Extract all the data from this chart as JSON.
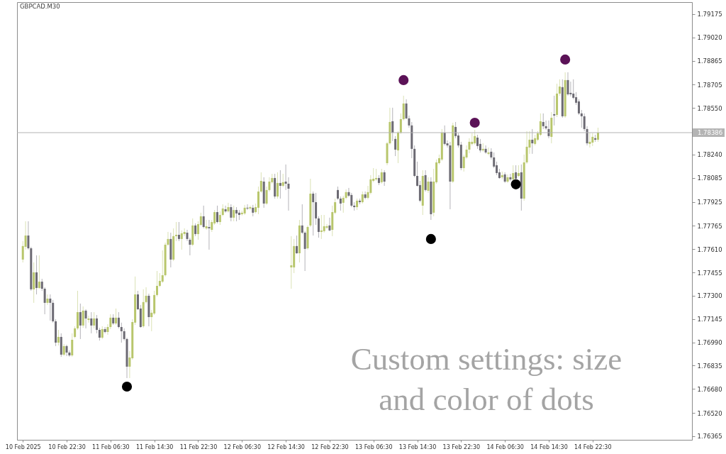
{
  "chart_data": {
    "type": "candlestick",
    "title": "GBPCAD.M30",
    "x": [
      "2025-02-10T14:30",
      "2025-02-10T15:00",
      "2025-02-10T15:30",
      "2025-02-10T16:00",
      "2025-02-10T16:30",
      "2025-02-10T17:00",
      "2025-02-10T17:30",
      "2025-02-10T18:00",
      "2025-02-10T18:30",
      "2025-02-10T19:00",
      "2025-02-10T19:30",
      "2025-02-10T20:00",
      "2025-02-10T20:30",
      "2025-02-10T21:00",
      "2025-02-10T21:30",
      "2025-02-10T22:00",
      "2025-02-10T22:30",
      "2025-02-10T23:00",
      "2025-02-10T23:30",
      "2025-02-11T00:00",
      "2025-02-11T00:30",
      "2025-02-11T01:00",
      "2025-02-11T01:30",
      "2025-02-11T02:00",
      "2025-02-11T02:30",
      "2025-02-11T03:00",
      "2025-02-11T03:30",
      "2025-02-11T04:00",
      "2025-02-11T04:30",
      "2025-02-11T05:00",
      "2025-02-11T05:30",
      "2025-02-11T06:00",
      "2025-02-11T06:30",
      "2025-02-11T07:00",
      "2025-02-11T07:30",
      "2025-02-11T08:00",
      "2025-02-11T08:30",
      "2025-02-11T09:00",
      "2025-02-11T09:30",
      "2025-02-11T10:00",
      "2025-02-11T10:30",
      "2025-02-11T11:00",
      "2025-02-11T11:30",
      "2025-02-11T12:00",
      "2025-02-11T12:30",
      "2025-02-11T13:00",
      "2025-02-11T13:30",
      "2025-02-11T14:00",
      "2025-02-11T14:30",
      "2025-02-11T15:00",
      "2025-02-11T15:30",
      "2025-02-11T16:00",
      "2025-02-11T16:30",
      "2025-02-11T17:00",
      "2025-02-11T17:30",
      "2025-02-11T18:00",
      "2025-02-11T18:30",
      "2025-02-11T19:00",
      "2025-02-11T19:30",
      "2025-02-11T20:00",
      "2025-02-11T20:30",
      "2025-02-11T21:00",
      "2025-02-11T21:30",
      "2025-02-11T22:00",
      "2025-02-11T22:30",
      "2025-02-11T23:00",
      "2025-02-11T23:30",
      "2025-02-12T00:00",
      "2025-02-12T00:30",
      "2025-02-12T01:00",
      "2025-02-12T01:30",
      "2025-02-12T02:00",
      "2025-02-12T02:30",
      "2025-02-12T03:00",
      "2025-02-12T03:30",
      "2025-02-12T04:00",
      "2025-02-12T04:30",
      "2025-02-12T05:00",
      "2025-02-12T05:30",
      "2025-02-12T06:00",
      "2025-02-12T06:30",
      "2025-02-12T07:00",
      "2025-02-12T07:30",
      "2025-02-12T08:00",
      "2025-02-12T08:30",
      "2025-02-12T09:00",
      "2025-02-12T09:30",
      "2025-02-12T10:00",
      "2025-02-12T10:30",
      "2025-02-12T11:00",
      "2025-02-12T11:30",
      "2025-02-12T12:00",
      "2025-02-12T12:30",
      "2025-02-12T13:00",
      "2025-02-12T13:30",
      "2025-02-12T14:00",
      "2025-02-12T14:30",
      "2025-02-12T15:00",
      "2025-02-12T15:30",
      "2025-02-12T16:00",
      "2025-02-12T16:30",
      "2025-02-12T17:00",
      "2025-02-12T17:30",
      "2025-02-12T18:00",
      "2025-02-12T18:30",
      "2025-02-12T19:00",
      "2025-02-12T19:30",
      "2025-02-12T20:00",
      "2025-02-12T20:30",
      "2025-02-12T21:00",
      "2025-02-12T21:30",
      "2025-02-12T22:00",
      "2025-02-12T22:30",
      "2025-02-12T23:00",
      "2025-02-12T23:30",
      "2025-02-13T00:00",
      "2025-02-13T00:30",
      "2025-02-13T01:00",
      "2025-02-13T01:30",
      "2025-02-13T02:00",
      "2025-02-13T02:30",
      "2025-02-13T03:00",
      "2025-02-13T03:30",
      "2025-02-13T04:00",
      "2025-02-13T04:30",
      "2025-02-13T05:00",
      "2025-02-13T05:30",
      "2025-02-13T06:00",
      "2025-02-13T06:30",
      "2025-02-13T07:00",
      "2025-02-13T07:30",
      "2025-02-13T08:00",
      "2025-02-13T08:30",
      "2025-02-13T09:00",
      "2025-02-13T09:30",
      "2025-02-13T10:00",
      "2025-02-13T10:30",
      "2025-02-13T11:00",
      "2025-02-13T11:30",
      "2025-02-13T12:00",
      "2025-02-13T12:30",
      "2025-02-13T13:00",
      "2025-02-13T13:30",
      "2025-02-13T14:00",
      "2025-02-13T14:30",
      "2025-02-13T15:00",
      "2025-02-13T15:30",
      "2025-02-13T16:00",
      "2025-02-13T16:30",
      "2025-02-13T17:00",
      "2025-02-13T17:30",
      "2025-02-13T18:00",
      "2025-02-13T18:30",
      "2025-02-13T19:00",
      "2025-02-13T19:30",
      "2025-02-13T20:00",
      "2025-02-13T20:30",
      "2025-02-13T21:00",
      "2025-02-13T21:30",
      "2025-02-13T22:00",
      "2025-02-13T22:30",
      "2025-02-13T23:00",
      "2025-02-13T23:30",
      "2025-02-14T00:00",
      "2025-02-14T00:30",
      "2025-02-14T01:00",
      "2025-02-14T01:30",
      "2025-02-14T02:00",
      "2025-02-14T02:30",
      "2025-02-14T03:00",
      "2025-02-14T03:30",
      "2025-02-14T04:00",
      "2025-02-14T04:30",
      "2025-02-14T05:00",
      "2025-02-14T05:30",
      "2025-02-14T06:00",
      "2025-02-14T06:30",
      "2025-02-14T07:00",
      "2025-02-14T07:30",
      "2025-02-14T08:00",
      "2025-02-14T08:30",
      "2025-02-14T09:00",
      "2025-02-14T09:30",
      "2025-02-14T10:00",
      "2025-02-14T10:30",
      "2025-02-14T11:00",
      "2025-02-14T11:30",
      "2025-02-14T12:00",
      "2025-02-14T12:30",
      "2025-02-14T13:00",
      "2025-02-14T13:30",
      "2025-02-14T14:00",
      "2025-02-14T14:30",
      "2025-02-14T15:00",
      "2025-02-14T15:30",
      "2025-02-14T16:00",
      "2025-02-14T16:30",
      "2025-02-14T17:00",
      "2025-02-14T17:30",
      "2025-02-14T18:00",
      "2025-02-14T18:30",
      "2025-02-14T19:00",
      "2025-02-14T19:30",
      "2025-02-14T20:00",
      "2025-02-14T20:30",
      "2025-02-14T21:00",
      "2025-02-14T21:30",
      "2025-02-14T22:00",
      "2025-02-14T22:30",
      "2025-02-14T23:00",
      "2025-02-14T23:30"
    ],
    "ohlc": [
      [
        1.77541,
        1.77664,
        1.77522,
        1.77631
      ],
      [
        1.77626,
        1.77796,
        1.77607,
        1.77701
      ],
      [
        1.77701,
        1.77796,
        1.77607,
        1.77616
      ],
      [
        1.77616,
        1.77626,
        1.77333,
        1.77343
      ],
      [
        1.77343,
        1.77522,
        1.77253,
        1.77456
      ],
      [
        1.77456,
        1.77569,
        1.77309,
        1.77352
      ],
      [
        1.77352,
        1.77569,
        1.77347,
        1.77394
      ],
      [
        1.77394,
        1.77413,
        1.77333,
        1.77347
      ],
      [
        1.77347,
        1.77357,
        1.77177,
        1.77253
      ],
      [
        1.77253,
        1.77309,
        1.77239,
        1.77281
      ],
      [
        1.77281,
        1.77309,
        1.77135,
        1.77253
      ],
      [
        1.77253,
        1.77272,
        1.77121,
        1.7713
      ],
      [
        1.7713,
        1.77144,
        1.76965,
        1.76988
      ],
      [
        1.76988,
        1.77073,
        1.76969,
        1.77026
      ],
      [
        1.77026,
        1.7705,
        1.76894,
        1.76908
      ],
      [
        1.76908,
        1.76979,
        1.76899,
        1.76965
      ],
      [
        1.76965,
        1.76974,
        1.76899,
        1.76922
      ],
      [
        1.76922,
        1.76936,
        1.76894,
        1.76903
      ],
      [
        1.76903,
        1.7705,
        1.76894,
        1.77007
      ],
      [
        1.77026,
        1.77097,
        1.77017,
        1.77083
      ],
      [
        1.77083,
        1.77333,
        1.77073,
        1.77191
      ],
      [
        1.77191,
        1.77248,
        1.77012,
        1.77102
      ],
      [
        1.77102,
        1.77229,
        1.77087,
        1.77201
      ],
      [
        1.77201,
        1.7721,
        1.77083,
        1.77149
      ],
      [
        1.77139,
        1.77168,
        1.77121,
        1.77149
      ],
      [
        1.77149,
        1.77191,
        1.7705,
        1.77102
      ],
      [
        1.77102,
        1.77191,
        1.77083,
        1.77149
      ],
      [
        1.77149,
        1.77172,
        1.7705,
        1.77073
      ],
      [
        1.77073,
        1.77087,
        1.77002,
        1.77021
      ],
      [
        1.77021,
        1.77097,
        1.77012,
        1.77078
      ],
      [
        1.77078,
        1.77092,
        1.7705,
        1.77059
      ],
      [
        1.77059,
        1.77111,
        1.7704,
        1.77092
      ],
      [
        1.77092,
        1.77177,
        1.77078,
        1.77154
      ],
      [
        1.77154,
        1.77177,
        1.77106,
        1.77116
      ],
      [
        1.77116,
        1.77215,
        1.77106,
        1.77154
      ],
      [
        1.77154,
        1.77191,
        1.77083,
        1.77092
      ],
      [
        1.77092,
        1.77121,
        1.76988,
        1.77064
      ],
      [
        1.77064,
        1.77083,
        1.77002,
        1.77012
      ],
      [
        1.77012,
        1.77021,
        1.76752,
        1.76828
      ],
      [
        1.76828,
        1.76932,
        1.76752,
        1.76889
      ],
      [
        1.76884,
        1.77144,
        1.76875,
        1.77125
      ],
      [
        1.77121,
        1.77428,
        1.77106,
        1.77309
      ],
      [
        1.77309,
        1.77333,
        1.77206,
        1.7721
      ],
      [
        1.77215,
        1.77239,
        1.77087,
        1.77092
      ],
      [
        1.77097,
        1.77343,
        1.77087,
        1.77258
      ],
      [
        1.77258,
        1.77357,
        1.77248,
        1.773
      ],
      [
        1.773,
        1.77314,
        1.77097,
        1.77158
      ],
      [
        1.77158,
        1.77206,
        1.77064,
        1.77187
      ],
      [
        1.77182,
        1.77333,
        1.77172,
        1.77305
      ],
      [
        1.77305,
        1.77465,
        1.77295,
        1.77366
      ],
      [
        1.77366,
        1.77451,
        1.77357,
        1.77399
      ],
      [
        1.77394,
        1.77602,
        1.77385,
        1.77437
      ],
      [
        1.77437,
        1.77654,
        1.77428,
        1.7764
      ],
      [
        1.7764,
        1.77725,
        1.77631,
        1.77678
      ],
      [
        1.77678,
        1.7772,
        1.77489,
        1.77541
      ],
      [
        1.77541,
        1.77749,
        1.77531,
        1.77697
      ],
      [
        1.77697,
        1.77791,
        1.77664,
        1.77706
      ],
      [
        1.77706,
        1.77791,
        1.77664,
        1.77678
      ],
      [
        1.77678,
        1.77735,
        1.77607,
        1.77716
      ],
      [
        1.77711,
        1.77749,
        1.77697,
        1.77725
      ],
      [
        1.7772,
        1.77739,
        1.77664,
        1.77678
      ],
      [
        1.77673,
        1.77687,
        1.77569,
        1.7764
      ],
      [
        1.7764,
        1.77815,
        1.77631,
        1.77768
      ],
      [
        1.77768,
        1.77782,
        1.77697,
        1.77711
      ],
      [
        1.77711,
        1.77796,
        1.77673,
        1.77777
      ],
      [
        1.77772,
        1.77853,
        1.77763,
        1.77829
      ],
      [
        1.77829,
        1.779,
        1.77749,
        1.77758
      ],
      [
        1.77749,
        1.77805,
        1.77739,
        1.77763
      ],
      [
        1.77758,
        1.77805,
        1.77607,
        1.77749
      ],
      [
        1.77739,
        1.77805,
        1.77725,
        1.77791
      ],
      [
        1.77782,
        1.77871,
        1.77772,
        1.77857
      ],
      [
        1.77857,
        1.779,
        1.77782,
        1.77791
      ],
      [
        1.77791,
        1.77862,
        1.77772,
        1.77838
      ],
      [
        1.77838,
        1.77909,
        1.77829,
        1.77881
      ],
      [
        1.77876,
        1.779,
        1.77853,
        1.77862
      ],
      [
        1.77862,
        1.77919,
        1.77853,
        1.7789
      ],
      [
        1.7789,
        1.77909,
        1.77796,
        1.7782
      ],
      [
        1.7782,
        1.779,
        1.77796,
        1.77871
      ],
      [
        1.77871,
        1.7789,
        1.77796,
        1.77848
      ],
      [
        1.77853,
        1.77871,
        1.77805,
        1.77838
      ],
      [
        1.77843,
        1.77867,
        1.77834,
        1.77853
      ],
      [
        1.77848,
        1.77905,
        1.77838,
        1.77886
      ],
      [
        1.77886,
        1.77909,
        1.77871,
        1.77881
      ],
      [
        1.77881,
        1.779,
        1.77871,
        1.7789
      ],
      [
        1.77886,
        1.77905,
        1.77829,
        1.77853
      ],
      [
        1.77857,
        1.77914,
        1.77848,
        1.7789
      ],
      [
        1.77886,
        1.78027,
        1.77843,
        1.77994
      ],
      [
        1.77994,
        1.78122,
        1.77985,
        1.78065
      ],
      [
        1.7806,
        1.78089,
        1.77886,
        1.77914
      ],
      [
        1.77914,
        1.78027,
        1.77905,
        1.78004
      ],
      [
        1.78004,
        1.78089,
        1.77994,
        1.7806
      ],
      [
        1.78056,
        1.78112,
        1.78046,
        1.78084
      ],
      [
        1.78084,
        1.78112,
        1.77947,
        1.77961
      ],
      [
        1.77961,
        1.78122,
        1.77947,
        1.78051
      ],
      [
        1.78051,
        1.78136,
        1.77947,
        1.78032
      ],
      [
        1.78032,
        1.78112,
        1.78023,
        1.78056
      ],
      [
        1.7806,
        1.78174,
        1.78004,
        1.78046
      ],
      [
        1.78046,
        1.78089,
        1.77867,
        1.78013
      ],
      [
        1.77489,
        1.77697,
        1.77347,
        1.77503
      ],
      [
        1.77489,
        1.77678,
        1.77451,
        1.77631
      ],
      [
        1.77631,
        1.77701,
        1.77579,
        1.77583
      ],
      [
        1.77583,
        1.77805,
        1.77522,
        1.77768
      ],
      [
        1.77768,
        1.77909,
        1.77711,
        1.7772
      ],
      [
        1.7772,
        1.7773,
        1.77465,
        1.77612
      ],
      [
        1.77616,
        1.77768,
        1.77607,
        1.77758
      ],
      [
        1.77768,
        1.78079,
        1.77758,
        1.7798
      ],
      [
        1.7798,
        1.77994,
        1.77701,
        1.77923
      ],
      [
        1.77923,
        1.77985,
        1.77772,
        1.77815
      ],
      [
        1.77815,
        1.77829,
        1.77687,
        1.77725
      ],
      [
        1.77725,
        1.77838,
        1.77678,
        1.77735
      ],
      [
        1.7773,
        1.77838,
        1.7772,
        1.77763
      ],
      [
        1.77753,
        1.77777,
        1.77744,
        1.77763
      ],
      [
        1.77768,
        1.7782,
        1.7773,
        1.77735
      ],
      [
        1.77739,
        1.779,
        1.77697,
        1.77857
      ],
      [
        1.77853,
        1.77947,
        1.77843,
        1.77923
      ],
      [
        1.78004,
        1.78027,
        1.77938,
        1.77947
      ],
      [
        1.77947,
        1.77961,
        1.77867,
        1.77914
      ],
      [
        1.77919,
        1.77966,
        1.77853,
        1.77952
      ],
      [
        1.77952,
        1.78008,
        1.77942,
        1.7799
      ],
      [
        1.7799,
        1.78018,
        1.77957,
        1.77966
      ],
      [
        1.77971,
        1.77985,
        1.7789,
        1.779
      ],
      [
        1.779,
        1.77923,
        1.77867,
        1.7789
      ],
      [
        1.7789,
        1.77947,
        1.77871,
        1.77933
      ],
      [
        1.77933,
        1.77947,
        1.77909,
        1.77923
      ],
      [
        1.77923,
        1.77994,
        1.77914,
        1.77975
      ],
      [
        1.77975,
        1.77994,
        1.77942,
        1.77952
      ],
      [
        1.77952,
        1.78032,
        1.77942,
        1.7799
      ],
      [
        1.77985,
        1.78103,
        1.77975,
        1.78075
      ],
      [
        1.78065,
        1.7815,
        1.78056,
        1.78079
      ],
      [
        1.78075,
        1.78145,
        1.78065,
        1.78084
      ],
      [
        1.78084,
        1.78103,
        1.78037,
        1.78051
      ],
      [
        1.78056,
        1.78145,
        1.78046,
        1.78122
      ],
      [
        1.78122,
        1.78136,
        1.78032,
        1.7806
      ],
      [
        1.78183,
        1.78325,
        1.78169,
        1.78315
      ],
      [
        1.78315,
        1.78552,
        1.78306,
        1.78457
      ],
      [
        1.78462,
        1.78552,
        1.7833,
        1.78386
      ],
      [
        1.78344,
        1.78363,
        1.7823,
        1.78273
      ],
      [
        1.78268,
        1.78396,
        1.78183,
        1.78386
      ],
      [
        1.78386,
        1.78514,
        1.78377,
        1.78476
      ],
      [
        1.78476,
        1.78632,
        1.78467,
        1.7858
      ],
      [
        1.7858,
        1.78608,
        1.78476,
        1.78481
      ],
      [
        1.78481,
        1.785,
        1.78419,
        1.78434
      ],
      [
        1.78434,
        1.78457,
        1.78216,
        1.78278
      ],
      [
        1.78278,
        1.78301,
        1.78089,
        1.78098
      ],
      [
        1.78098,
        1.78193,
        1.78027,
        1.78032
      ],
      [
        1.78037,
        1.78065,
        1.77923,
        1.77933
      ],
      [
        1.779,
        1.78136,
        1.77838,
        1.78098
      ],
      [
        1.78103,
        1.78136,
        1.77994,
        1.78004
      ],
      [
        1.77999,
        1.78089,
        1.77985,
        1.7806
      ],
      [
        1.7806,
        1.78089,
        1.77805,
        1.77843
      ],
      [
        1.77853,
        1.78145,
        1.77829,
        1.7806
      ],
      [
        1.78056,
        1.78207,
        1.78046,
        1.78188
      ],
      [
        1.78183,
        1.7824,
        1.78174,
        1.78216
      ],
      [
        1.78207,
        1.7841,
        1.78197,
        1.78386
      ],
      [
        1.78386,
        1.78434,
        1.78301,
        1.78311
      ],
      [
        1.78315,
        1.78334,
        1.78287,
        1.78301
      ],
      [
        1.78301,
        1.78325,
        1.77876,
        1.7806
      ],
      [
        1.7806,
        1.78452,
        1.78051,
        1.78434
      ],
      [
        1.78424,
        1.78457,
        1.78349,
        1.78363
      ],
      [
        1.78367,
        1.78382,
        1.78287,
        1.78301
      ],
      [
        1.78306,
        1.78325,
        1.78136,
        1.7815
      ],
      [
        1.7815,
        1.7824,
        1.78127,
        1.78226
      ],
      [
        1.78221,
        1.78301,
        1.78212,
        1.78273
      ],
      [
        1.78273,
        1.78349,
        1.78249,
        1.78325
      ],
      [
        1.78311,
        1.78382,
        1.78301,
        1.78325
      ],
      [
        1.78315,
        1.78405,
        1.78306,
        1.78363
      ],
      [
        1.78353,
        1.78372,
        1.78278,
        1.78297
      ],
      [
        1.78311,
        1.78344,
        1.78254,
        1.78268
      ],
      [
        1.78268,
        1.78315,
        1.78259,
        1.78278
      ],
      [
        1.78278,
        1.78301,
        1.78245,
        1.78254
      ],
      [
        1.78245,
        1.78287,
        1.78235,
        1.78254
      ],
      [
        1.78259,
        1.78282,
        1.78207,
        1.78221
      ],
      [
        1.78221,
        1.78254,
        1.7815,
        1.7816
      ],
      [
        1.78169,
        1.78193,
        1.78103,
        1.78117
      ],
      [
        1.78122,
        1.78145,
        1.78079,
        1.78084
      ],
      [
        1.78089,
        1.78127,
        1.78075,
        1.78103
      ],
      [
        1.78108,
        1.78122,
        1.78051,
        1.7806
      ],
      [
        1.7806,
        1.78108,
        1.78051,
        1.78089
      ],
      [
        1.78089,
        1.78112,
        1.78065,
        1.78075
      ],
      [
        1.78075,
        1.78169,
        1.78065,
        1.78117
      ],
      [
        1.78122,
        1.78169,
        1.7807,
        1.78079
      ],
      [
        1.78098,
        1.78169,
        1.78089,
        1.78117
      ],
      [
        1.78122,
        1.78174,
        1.77867,
        1.77947
      ],
      [
        1.77947,
        1.7824,
        1.77933,
        1.78188
      ],
      [
        1.78188,
        1.78396,
        1.78178,
        1.78292
      ],
      [
        1.78287,
        1.78396,
        1.78245,
        1.78339
      ],
      [
        1.78339,
        1.7841,
        1.78245,
        1.78315
      ],
      [
        1.78311,
        1.78372,
        1.78301,
        1.78349
      ],
      [
        1.78339,
        1.78396,
        1.7833,
        1.78382
      ],
      [
        1.78372,
        1.78514,
        1.78363,
        1.78462
      ],
      [
        1.78457,
        1.78514,
        1.7841,
        1.78429
      ],
      [
        1.78429,
        1.78467,
        1.78405,
        1.78415
      ],
      [
        1.7841,
        1.78467,
        1.78349,
        1.78363
      ],
      [
        1.78358,
        1.78523,
        1.78315,
        1.78485
      ],
      [
        1.78509,
        1.78632,
        1.78434,
        1.785
      ],
      [
        1.78504,
        1.78712,
        1.7849,
        1.78646
      ],
      [
        1.78646,
        1.78741,
        1.78632,
        1.78693
      ],
      [
        1.78689,
        1.78741,
        1.78485,
        1.78495
      ],
      [
        1.78495,
        1.78788,
        1.78485,
        1.78736
      ],
      [
        1.78736,
        1.78788,
        1.78632,
        1.78641
      ],
      [
        1.78651,
        1.78726,
        1.78627,
        1.78641
      ],
      [
        1.78646,
        1.78741,
        1.78608,
        1.78618
      ],
      [
        1.78622,
        1.78656,
        1.78571,
        1.78585
      ],
      [
        1.78594,
        1.78608,
        1.78504,
        1.78514
      ],
      [
        1.78514,
        1.78537,
        1.78419,
        1.78495
      ],
      [
        1.78495,
        1.78514,
        1.78396,
        1.7841
      ],
      [
        1.7841,
        1.78429,
        1.78301,
        1.78315
      ],
      [
        1.78311,
        1.78386,
        1.78287,
        1.78325
      ],
      [
        1.7832,
        1.78382,
        1.78297,
        1.78358
      ],
      [
        1.78349,
        1.78372,
        1.78325,
        1.78339
      ],
      [
        1.78339,
        1.78419,
        1.78325,
        1.78386
      ]
    ],
    "colors": [
      "#b8c66c",
      "#b8c66c",
      "#6c6a73",
      "#6c6a73",
      "#b8c66c",
      "#6c6a73",
      "#b8c66c",
      "#6c6a73",
      "#6c6a73",
      "#b8c66c",
      "#6c6a73",
      "#6c6a73",
      "#6c6a73",
      "#b8c66c",
      "#6c6a73",
      "#b8c66c",
      "#6c6a73",
      "#6c6a73",
      "#b8c66c",
      "#b8c66c",
      "#b8c66c",
      "#6c6a73",
      "#b8c66c",
      "#6c6a73",
      "#b8c66c",
      "#6c6a73",
      "#b8c66c",
      "#6c6a73",
      "#6c6a73",
      "#b8c66c",
      "#6c6a73",
      "#b8c66c",
      "#b8c66c",
      "#6c6a73",
      "#b8c66c",
      "#6c6a73",
      "#6c6a73",
      "#6c6a73",
      "#6c6a73",
      "#b8c66c",
      "#b8c66c",
      "#b8c66c",
      "#6c6a73",
      "#6c6a73",
      "#b8c66c",
      "#b8c66c",
      "#6c6a73",
      "#b8c66c",
      "#b8c66c",
      "#b8c66c",
      "#b8c66c",
      "#b8c66c",
      "#b8c66c",
      "#b8c66c",
      "#6c6a73",
      "#b8c66c",
      "#b8c66c",
      "#6c6a73",
      "#b8c66c",
      "#b8c66c",
      "#6c6a73",
      "#6c6a73",
      "#b8c66c",
      "#6c6a73",
      "#b8c66c",
      "#b8c66c",
      "#6c6a73",
      "#b8c66c",
      "#6c6a73",
      "#b8c66c",
      "#b8c66c",
      "#6c6a73",
      "#b8c66c",
      "#b8c66c",
      "#6c6a73",
      "#b8c66c",
      "#6c6a73",
      "#b8c66c",
      "#6c6a73",
      "#6c6a73",
      "#b8c66c",
      "#b8c66c",
      "#6c6a73",
      "#b8c66c",
      "#6c6a73",
      "#b8c66c",
      "#b8c66c",
      "#b8c66c",
      "#6c6a73",
      "#b8c66c",
      "#b8c66c",
      "#b8c66c",
      "#6c6a73",
      "#b8c66c",
      "#6c6a73",
      "#b8c66c",
      "#6c6a73",
      "#6c6a73",
      "#b8c66c",
      "#b8c66c",
      "#6c6a73",
      "#b8c66c",
      "#6c6a73",
      "#6c6a73",
      "#b8c66c",
      "#b8c66c",
      "#6c6a73",
      "#6c6a73",
      "#6c6a73",
      "#b8c66c",
      "#b8c66c",
      "#b8c66c",
      "#6c6a73",
      "#b8c66c",
      "#b8c66c",
      "#6c6a73",
      "#6c6a73",
      "#b8c66c",
      "#b8c66c",
      "#6c6a73",
      "#6c6a73",
      "#6c6a73",
      "#b8c66c",
      "#6c6a73",
      "#b8c66c",
      "#6c6a73",
      "#b8c66c",
      "#b8c66c",
      "#b8c66c",
      "#b8c66c",
      "#6c6a73",
      "#b8c66c",
      "#6c6a73",
      "#b8c66c",
      "#b8c66c",
      "#6c6a73",
      "#6c6a73",
      "#b8c66c",
      "#b8c66c",
      "#b8c66c",
      "#6c6a73",
      "#6c6a73",
      "#6c6a73",
      "#6c6a73",
      "#6c6a73",
      "#6c6a73",
      "#b8c66c",
      "#6c6a73",
      "#b8c66c",
      "#6c6a73",
      "#b8c66c",
      "#b8c66c",
      "#b8c66c",
      "#b8c66c",
      "#6c6a73",
      "#6c6a73",
      "#6c6a73",
      "#b8c66c",
      "#6c6a73",
      "#6c6a73",
      "#6c6a73",
      "#b8c66c",
      "#b8c66c",
      "#b8c66c",
      "#b8c66c",
      "#b8c66c",
      "#6c6a73",
      "#6c6a73",
      "#b8c66c",
      "#6c6a73",
      "#b8c66c",
      "#6c6a73",
      "#6c6a73",
      "#6c6a73",
      "#6c6a73",
      "#b8c66c",
      "#6c6a73",
      "#b8c66c",
      "#6c6a73",
      "#b8c66c",
      "#6c6a73",
      "#b8c66c",
      "#6c6a73",
      "#b8c66c",
      "#b8c66c",
      "#b8c66c",
      "#6c6a73",
      "#b8c66c",
      "#b8c66c",
      "#b8c66c",
      "#6c6a73",
      "#6c6a73",
      "#6c6a73",
      "#b8c66c",
      "#6c6a73",
      "#b8c66c",
      "#b8c66c",
      "#6c6a73",
      "#b8c66c",
      "#6c6a73",
      "#6c6a73",
      "#6c6a73",
      "#6c6a73",
      "#6c6a73",
      "#6c6a73",
      "#6c6a73",
      "#6c6a73",
      "#b8c66c",
      "#b8c66c",
      "#6c6a73",
      "#b8c66c"
    ],
    "series": [
      {
        "type": "scatter",
        "color": "#5b1257",
        "marker": "circle",
        "x": [
          "2025-02-13T12:00",
          "2025-02-14T01:00",
          "2025-02-14T17:30"
        ],
        "values": [
          1.78736,
          1.78452,
          1.78873
        ]
      },
      {
        "type": "scatter",
        "color": "#000000",
        "marker": "circle",
        "x": [
          "2025-02-11T09:30",
          "2025-02-13T17:00",
          "2025-02-14T08:30"
        ],
        "values": [
          1.76695,
          1.77678,
          1.78042
        ]
      }
    ],
    "xlim": [
      "2025-02-10T14:05",
      "2025-02-15T16:00"
    ],
    "xticks": [
      {
        "value": "2025-02-10T14:30",
        "label": "10 Feb 2025"
      },
      {
        "value": "2025-02-10T22:30",
        "label": "10 Feb 22:30"
      },
      {
        "value": "2025-02-11T06:30",
        "label": "11 Feb 06:30"
      },
      {
        "value": "2025-02-11T14:30",
        "label": "11 Feb 14:30"
      },
      {
        "value": "2025-02-11T22:30",
        "label": "11 Feb 22:30"
      },
      {
        "value": "2025-02-12T06:30",
        "label": "12 Feb 06:30"
      },
      {
        "value": "2025-02-12T14:30",
        "label": "12 Feb 14:30"
      },
      {
        "value": "2025-02-12T22:30",
        "label": "12 Feb 22:30"
      },
      {
        "value": "2025-02-13T06:30",
        "label": "13 Feb 06:30"
      },
      {
        "value": "2025-02-13T14:30",
        "label": "13 Feb 14:30"
      },
      {
        "value": "2025-02-13T22:30",
        "label": "13 Feb 22:30"
      },
      {
        "value": "2025-02-14T06:30",
        "label": "14 Feb 06:30"
      },
      {
        "value": "2025-02-14T14:30",
        "label": "14 Feb 14:30"
      },
      {
        "value": "2025-02-14T22:30",
        "label": "14 Feb 22:30"
      }
    ],
    "ylim": [
      1.76341,
      1.79255
    ],
    "yticks": [
      1.79175,
      {
        "value": 1.7902,
        "label": "1.79020"
      },
      1.78865,
      1.78705,
      {
        "value": 1.7855,
        "label": "1.78550"
      },
      {
        "value": 1.7824,
        "label": "1.78240"
      },
      1.78085,
      1.77925,
      1.77765,
      {
        "value": 1.7761,
        "label": "1.77610"
      },
      1.77455,
      {
        "value": 1.773,
        "label": "1.77300"
      },
      1.77145,
      {
        "value": 1.7699,
        "label": "1.76990"
      },
      1.76835,
      {
        "value": 1.7668,
        "label": "1.76680"
      },
      {
        "value": 1.7652,
        "label": "1.76520"
      },
      1.76365
    ],
    "ref_lines": [
      {
        "axis": "y",
        "value": 1.78386,
        "label": "1.78386",
        "color": "#b4b4b4"
      }
    ],
    "annotations": [
      "Custom settings: size and color of dots"
    ],
    "grid": false
  }
}
